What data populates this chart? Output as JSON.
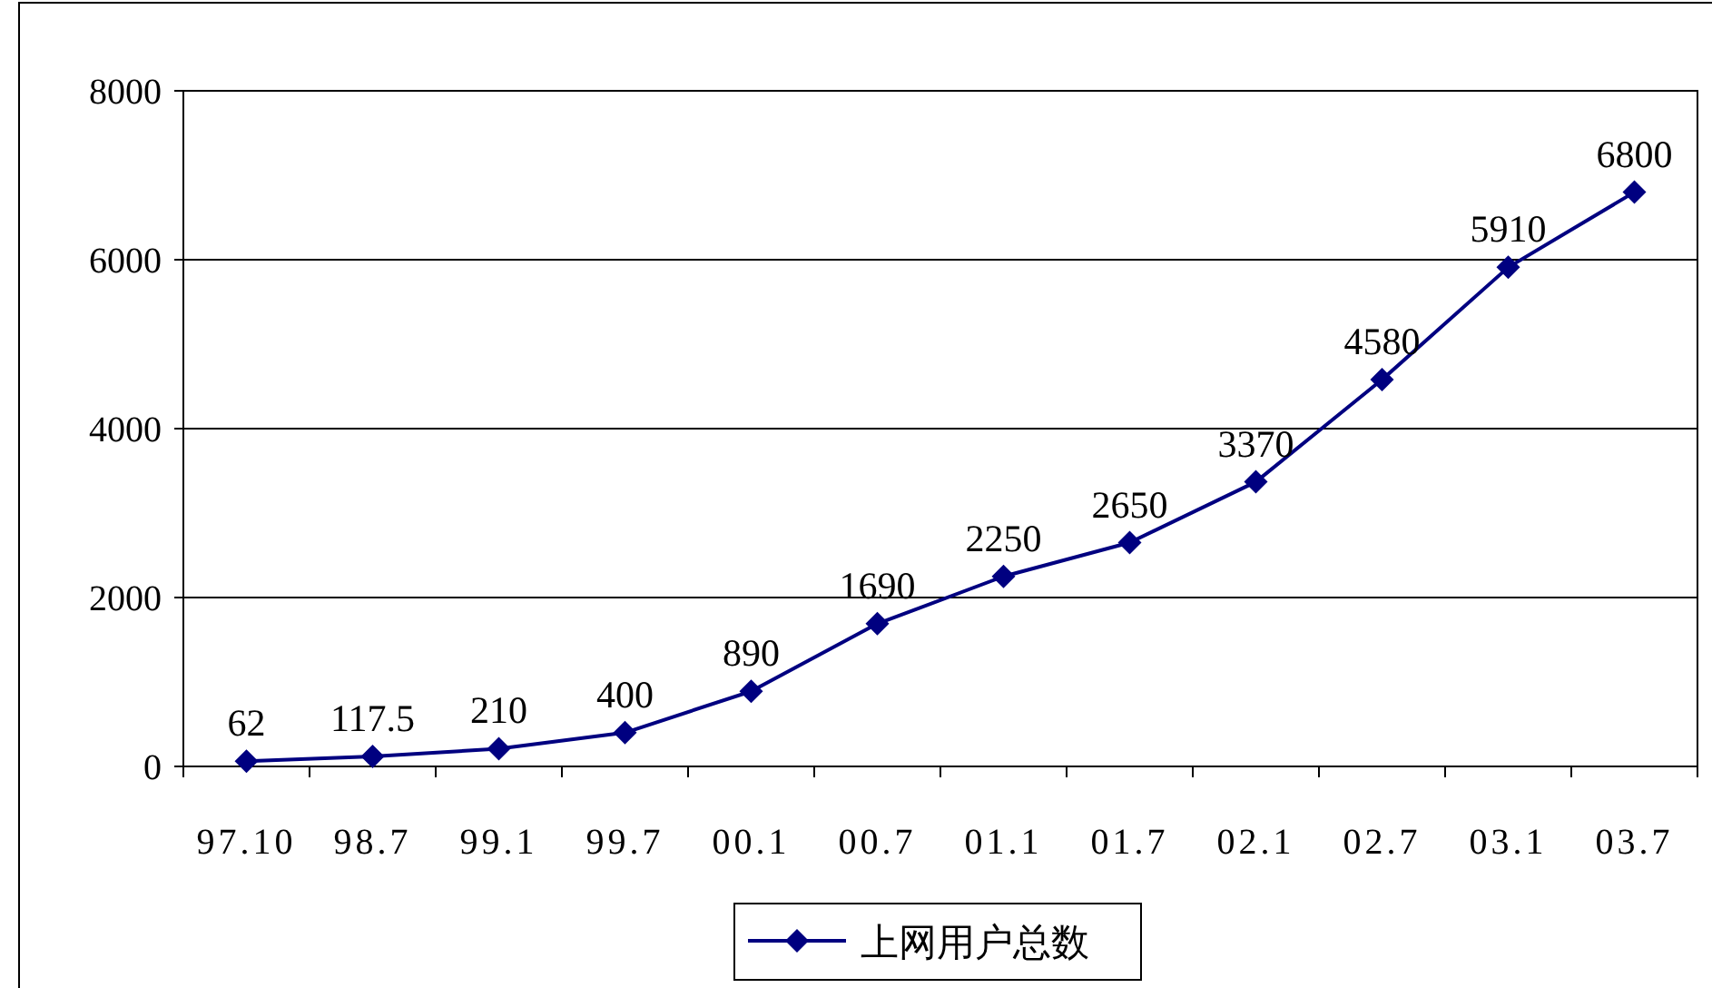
{
  "chart_data": {
    "type": "line",
    "categories": [
      "97.10",
      "98.7",
      "99.1",
      "99.7",
      "00.1",
      "00.7",
      "01.1",
      "01.7",
      "02.1",
      "02.7",
      "03.1",
      "03.7"
    ],
    "series": [
      {
        "name": "上网用户总数",
        "color": "#000080",
        "values": [
          62,
          117.5,
          210,
          400,
          890,
          1690,
          2250,
          2650,
          3370,
          4580,
          5910,
          6800
        ]
      }
    ],
    "ylim": [
      0,
      8000
    ],
    "yticks": [
      0,
      2000,
      4000,
      6000,
      8000
    ],
    "grid": "y",
    "legend": "bottom",
    "marker": "diamond",
    "data_labels": true
  }
}
